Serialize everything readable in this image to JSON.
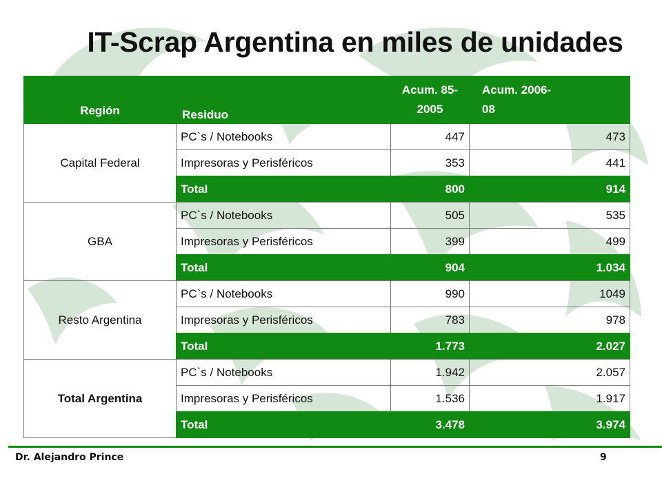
{
  "title": "IT-Scrap Argentina en miles de unidades",
  "colors": {
    "accent": "#108a13",
    "watermark": "#d6e6d6"
  },
  "table": {
    "headers": {
      "region": "Región",
      "residuo": "Residuo",
      "acum1": "Acum. 85-\n2005",
      "acum2": "Acum. 2006-\n08"
    },
    "groups": [
      {
        "region": "Capital Federal",
        "rows": [
          {
            "residuo": "PC`s / Notebooks",
            "acum1": "447",
            "acum2": "473"
          },
          {
            "residuo": "Impresoras y Perisféricos",
            "acum1": "353",
            "acum2": "441"
          },
          {
            "residuo": "Total",
            "acum1": "800",
            "acum2": "914"
          }
        ]
      },
      {
        "region": "GBA",
        "rows": [
          {
            "residuo": "PC`s / Notebooks",
            "acum1": "505",
            "acum2": "535"
          },
          {
            "residuo": "Impresoras y Perisféricos",
            "acum1": "399",
            "acum2": "499"
          },
          {
            "residuo": "Total",
            "acum1": "904",
            "acum2": "1.034"
          }
        ]
      },
      {
        "region": "Resto Argentina",
        "rows": [
          {
            "residuo": "PC`s / Notebooks",
            "acum1": "990",
            "acum2": "1049"
          },
          {
            "residuo": "Impresoras y Perisféricos",
            "acum1": "783",
            "acum2": "978"
          },
          {
            "residuo": "Total",
            "acum1": "1.773",
            "acum2": "2.027"
          }
        ]
      },
      {
        "region": "Total Argentina",
        "rows": [
          {
            "residuo": "PC`s / Notebooks",
            "acum1": "1.942",
            "acum2": "2.057"
          },
          {
            "residuo": "Impresoras y Perisféricos",
            "acum1": "1.536",
            "acum2": "1.917"
          },
          {
            "residuo": "Total",
            "acum1": "3.478",
            "acum2": "3.974"
          }
        ]
      }
    ]
  },
  "footer": {
    "author": "Dr. Alejandro Prince",
    "page": "9"
  }
}
